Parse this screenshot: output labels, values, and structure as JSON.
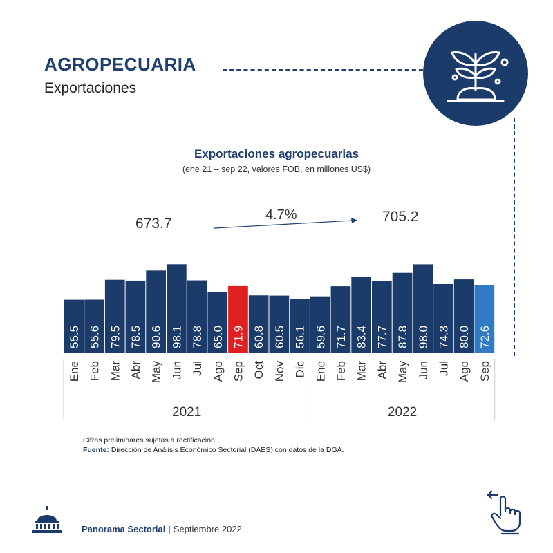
{
  "header": {
    "title": "AGROPECUARIA",
    "subtitle": "Exportaciones"
  },
  "badge_icon": "plant-sprout-icon",
  "chart_data": {
    "type": "bar",
    "title": "Exportaciones agropecuarias",
    "subtitle": "(ene 21 – sep 22, valores FOB, en millones US$)",
    "categories": [
      "Ene",
      "Feb",
      "Mar",
      "Abr",
      "May",
      "Jun",
      "Jul",
      "Ago",
      "Sep",
      "Oct",
      "Nov",
      "Dic",
      "Ene",
      "Feb",
      "Mar",
      "Abr",
      "May",
      "Jun",
      "Jul",
      "Ago",
      "Sep"
    ],
    "values": [
      55.5,
      55.6,
      79.5,
      78.5,
      90.6,
      98.1,
      78.8,
      65.0,
      71.9,
      60.8,
      60.5,
      56.1,
      59.6,
      71.7,
      83.4,
      77.7,
      87.8,
      98.0,
      74.3,
      80.0,
      72.6
    ],
    "value_labels": [
      "55.5",
      "55.6",
      "79.5",
      "78.5",
      "90.6",
      "98.1",
      "78.8",
      "65.0",
      "71.9",
      "60.8",
      "60.5",
      "56.1",
      "59.6",
      "71.7",
      "83.4",
      "77.7",
      "87.8",
      "98.0",
      "74.3",
      "80.0",
      "72.6"
    ],
    "years": [
      {
        "label": "2021",
        "start": 0,
        "end": 11
      },
      {
        "label": "2022",
        "start": 12,
        "end": 20
      }
    ],
    "highlights": {
      "8": "#e02020",
      "20": "#2f7bc4"
    },
    "bar_color": "#1b3b6b",
    "totals": {
      "left": "673.7",
      "growth": "4.7%",
      "right": "705.2"
    },
    "ylim": [
      0,
      100
    ]
  },
  "notes": {
    "preliminary": "Cifras preliminares sujetas a rectificación.",
    "source_label": "Fuente:",
    "source_text": " Dirección de Análisis Económico Sectorial (DAES) con datos de la DGA."
  },
  "footer": {
    "publication": "Panorama Sectorial",
    "separator": "|",
    "date": "Septiembre 2022"
  },
  "icons": {
    "logo": "dome-building-icon",
    "hand": "pointing-hand-icon"
  },
  "colors": {
    "navy": "#1b3b6b",
    "red": "#e02020",
    "blue": "#2f7bc4"
  }
}
